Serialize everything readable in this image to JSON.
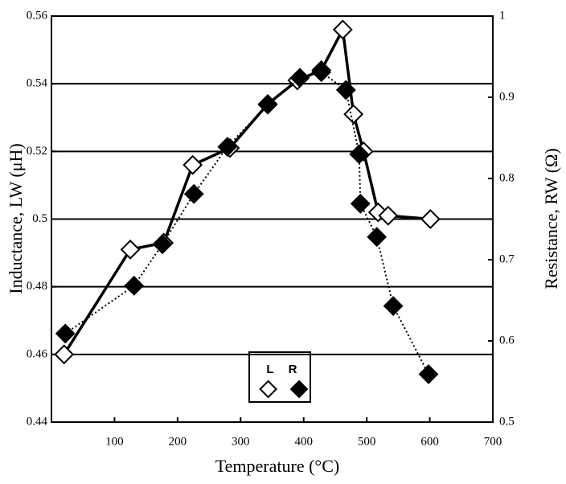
{
  "chart_data": {
    "type": "line",
    "x_label": "Temperature (°C)",
    "y_label": "Inductance, LW (μH)",
    "y2_label": "Resistance, RW (Ω)",
    "xlim": [
      0,
      700
    ],
    "xticks": [
      100,
      200,
      300,
      400,
      500,
      600,
      700
    ],
    "ylim": [
      0.44,
      0.56
    ],
    "yticks": [
      0.44,
      0.46,
      0.48,
      0.5,
      0.52,
      0.54,
      0.56
    ],
    "y2lim": [
      0.5,
      1
    ],
    "y2ticks": [
      0.5,
      0.6,
      0.7,
      0.8,
      0.9,
      1
    ],
    "grid": true,
    "series": [
      {
        "name": "L",
        "color": "#000000",
        "marker": "open-diamond",
        "x": [
          20,
          125,
          178,
          224,
          283,
          343,
          390,
          428,
          462,
          479,
          495,
          518,
          534,
          601
        ],
        "values": [
          0.46,
          0.491,
          0.493,
          0.516,
          0.521,
          0.534,
          0.541,
          0.544,
          0.556,
          0.531,
          0.52,
          0.502,
          0.501,
          0.5
        ]
      },
      {
        "name": "R",
        "color": "#000000",
        "marker": "filled-diamond",
        "axis": "y2",
        "x": [
          22,
          131,
          176,
          226,
          279,
          343,
          394,
          428,
          467,
          488,
          490,
          516,
          542,
          598
        ],
        "values": [
          0.609,
          0.668,
          0.719,
          0.781,
          0.839,
          0.891,
          0.924,
          0.931,
          0.909,
          0.83,
          0.769,
          0.728,
          0.643,
          0.559
        ]
      }
    ]
  }
}
